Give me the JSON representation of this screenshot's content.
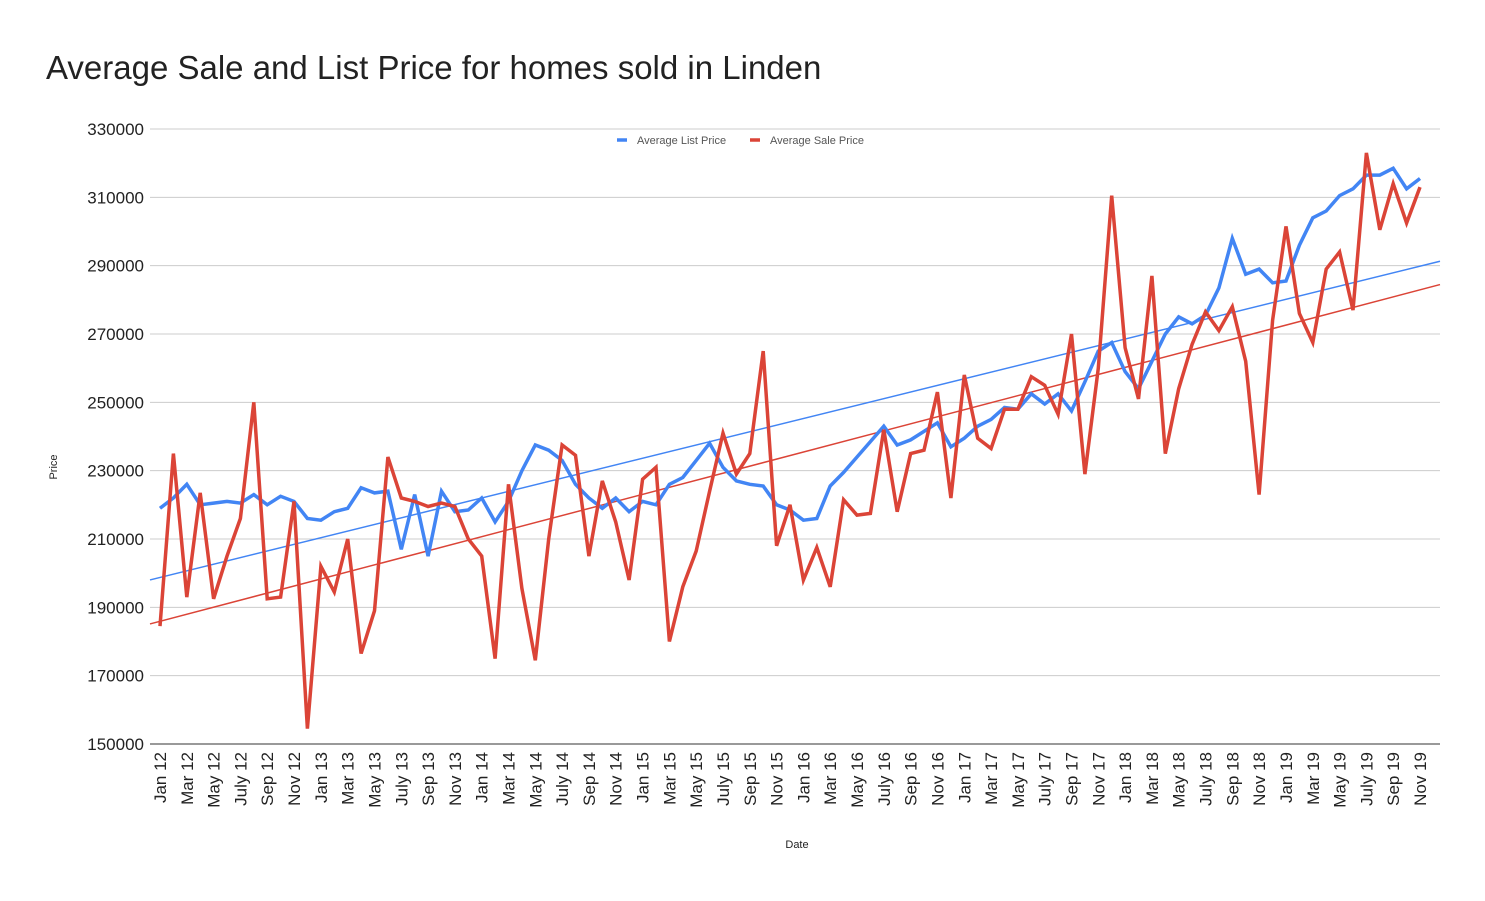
{
  "chart_data": {
    "type": "line",
    "title": "Average Sale and List Price for homes sold in Linden",
    "xlabel": "Date",
    "ylabel": "Price",
    "ylim": [
      150000,
      330000
    ],
    "yticks": [
      150000,
      170000,
      190000,
      210000,
      230000,
      250000,
      270000,
      290000,
      310000,
      330000
    ],
    "grid": true,
    "legend_position": "top",
    "trendlines": true,
    "x": [
      "Jan 12",
      "Feb 12",
      "Mar 12",
      "Apr 12",
      "May 12",
      "Jun 12",
      "July 12",
      "Aug 12",
      "Sep 12",
      "Oct 12",
      "Nov 12",
      "Dec 12",
      "Jan 13",
      "Feb 13",
      "Mar 13",
      "Apr 13",
      "May 13",
      "Jun 13",
      "July 13",
      "Aug 13",
      "Sep 13",
      "Oct 13",
      "Nov 13",
      "Dec 13",
      "Jan 14",
      "Feb 14",
      "Mar 14",
      "Apr 14",
      "May 14",
      "Jun 14",
      "July 14",
      "Aug 14",
      "Sep 14",
      "Oct 14",
      "Nov 14",
      "Dec 14",
      "Jan 15",
      "Feb 15",
      "Mar 15",
      "Apr 15",
      "May 15",
      "Jun 15",
      "July 15",
      "Aug 15",
      "Sep 15",
      "Oct 15",
      "Nov 15",
      "Dec 15",
      "Jan 16",
      "Feb 16",
      "Mar 16",
      "Apr 16",
      "May 16",
      "Jun 16",
      "July 16",
      "Aug 16",
      "Sep 16",
      "Oct 16",
      "Nov 16",
      "Dec 16",
      "Jan 17",
      "Feb 17",
      "Mar 17",
      "Apr 17",
      "May 17",
      "Jun 17",
      "July 17",
      "Aug 17",
      "Sep 17",
      "Oct 17",
      "Nov 17",
      "Dec 17",
      "Jan 18",
      "Feb 18",
      "Mar 18",
      "Apr 18",
      "May 18",
      "Jun 18",
      "July 18",
      "Aug 18",
      "Sep 18",
      "Oct 18",
      "Nov 18",
      "Dec 18",
      "Jan 19",
      "Feb 19",
      "Mar 19",
      "Apr 19",
      "May 19",
      "Jun 19",
      "July 19",
      "Aug 19",
      "Sep 19",
      "Oct 19",
      "Nov 19"
    ],
    "series": [
      {
        "name": "Average List Price",
        "color": "#4285f4",
        "values": [
          219000,
          222000,
          226000,
          220000,
          220500,
          221000,
          220500,
          223000,
          220000,
          222500,
          221000,
          216000,
          215500,
          218000,
          219000,
          225000,
          223500,
          224000,
          207000,
          223000,
          205000,
          224000,
          218000,
          218500,
          222000,
          215000,
          221000,
          230000,
          237500,
          236000,
          233000,
          226000,
          222000,
          219000,
          222000,
          218000,
          221000,
          220000,
          226000,
          228000,
          233000,
          238000,
          231000,
          227000,
          226000,
          225500,
          220000,
          218500,
          215500,
          216000,
          225500,
          229500,
          234000,
          238500,
          243000,
          237500,
          239000,
          241500,
          244000,
          237000,
          239500,
          243000,
          245000,
          248500,
          248000,
          252500,
          249500,
          252500,
          247500,
          256000,
          265000,
          267500,
          259000,
          254000,
          262000,
          270000,
          275000,
          273000,
          275500,
          283500,
          298000,
          287500,
          289000,
          285000,
          285500,
          296000,
          304000,
          306000,
          310500,
          312500,
          316500,
          316500,
          318500,
          312500,
          315500
        ]
      },
      {
        "name": "Average Sale Price",
        "color": "#db4437",
        "values": [
          184500,
          235000,
          193000,
          223500,
          192500,
          205000,
          216000,
          250000,
          192500,
          193000,
          221000,
          154500,
          202000,
          194500,
          210000,
          176500,
          189000,
          234000,
          222000,
          221000,
          219500,
          220500,
          219500,
          210000,
          205000,
          175000,
          226000,
          195500,
          174500,
          210000,
          237500,
          234500,
          205000,
          227000,
          215000,
          198000,
          227500,
          231000,
          180000,
          196000,
          206500,
          224000,
          241000,
          229000,
          235000,
          265000,
          208000,
          220000,
          198000,
          207500,
          196000,
          221500,
          217000,
          217500,
          242000,
          218000,
          235000,
          236000,
          253000,
          222000,
          258000,
          239500,
          236500,
          248000,
          248000,
          257500,
          255000,
          246500,
          270000,
          229000,
          260000,
          310500,
          266000,
          251000,
          287000,
          235000,
          254000,
          267000,
          276500,
          271000,
          278000,
          262000,
          223000,
          274000,
          301500,
          276000,
          267500,
          289000,
          294000,
          277000,
          323000,
          300500,
          314000,
          302500,
          313000
        ]
      }
    ]
  }
}
